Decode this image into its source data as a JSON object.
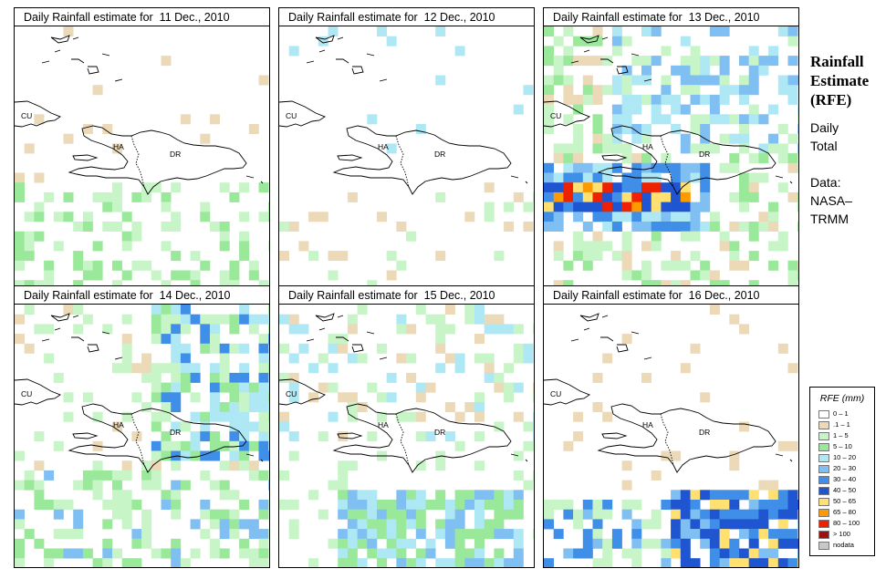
{
  "panels": [
    {
      "title": "Daily Rainfall estimate for  11 Dec., 2010",
      "map_labels": {
        "cu": "CU",
        "ha": "HA",
        "dr": "DR"
      }
    },
    {
      "title": "Daily Rainfall estimate for  12 Dec., 2010",
      "map_labels": {
        "cu": "CU",
        "ha": "HA",
        "dr": "DR"
      }
    },
    {
      "title": "Daily Rainfall estimate for  13 Dec., 2010",
      "map_labels": {
        "cu": "CU",
        "ha": "HA",
        "dr": "DR"
      }
    },
    {
      "title": "Daily Rainfall estimate for  14 Dec., 2010",
      "map_labels": {
        "cu": "CU",
        "ha": "HA",
        "dr": "DR"
      }
    },
    {
      "title": "Daily Rainfall estimate for  15 Dec., 2010",
      "map_labels": {
        "cu": "CU",
        "ha": "HA",
        "dr": "DR"
      }
    },
    {
      "title": "Daily Rainfall estimate for  16 Dec., 2010",
      "map_labels": {
        "cu": "CU",
        "ha": "HA",
        "dr": "DR"
      }
    }
  ],
  "side": {
    "title_line1": "Rainfall",
    "title_line2": "Estimate",
    "title_line3": "(RFE)",
    "daily": "Daily",
    "total": "Total",
    "data_label": "Data:",
    "source_line1": "NASA–",
    "source_line2": "TRMM"
  },
  "legend": {
    "title": "RFE (mm)",
    "items": [
      {
        "label": "0 – 1",
        "color": "#ffffff"
      },
      {
        "label": ".1 – 1",
        "color": "#ecd9b8"
      },
      {
        "label": "1 – 5",
        "color": "#c8f5c8"
      },
      {
        "label": "5 – 10",
        "color": "#9ae89a"
      },
      {
        "label": "10 – 20",
        "color": "#aee8f5"
      },
      {
        "label": "20 – 30",
        "color": "#7fbff2"
      },
      {
        "label": "30 – 40",
        "color": "#3f8fe8"
      },
      {
        "label": "40 – 50",
        "color": "#1f55d0"
      },
      {
        "label": "50 – 65",
        "color": "#ffe070"
      },
      {
        "label": "65 – 80",
        "color": "#ff9900"
      },
      {
        "label": "80 – 100",
        "color": "#ee2200"
      },
      {
        "label": "> 100",
        "color": "#a01010"
      },
      {
        "label": "nodata",
        "color": "#c8c8c8"
      }
    ]
  }
}
